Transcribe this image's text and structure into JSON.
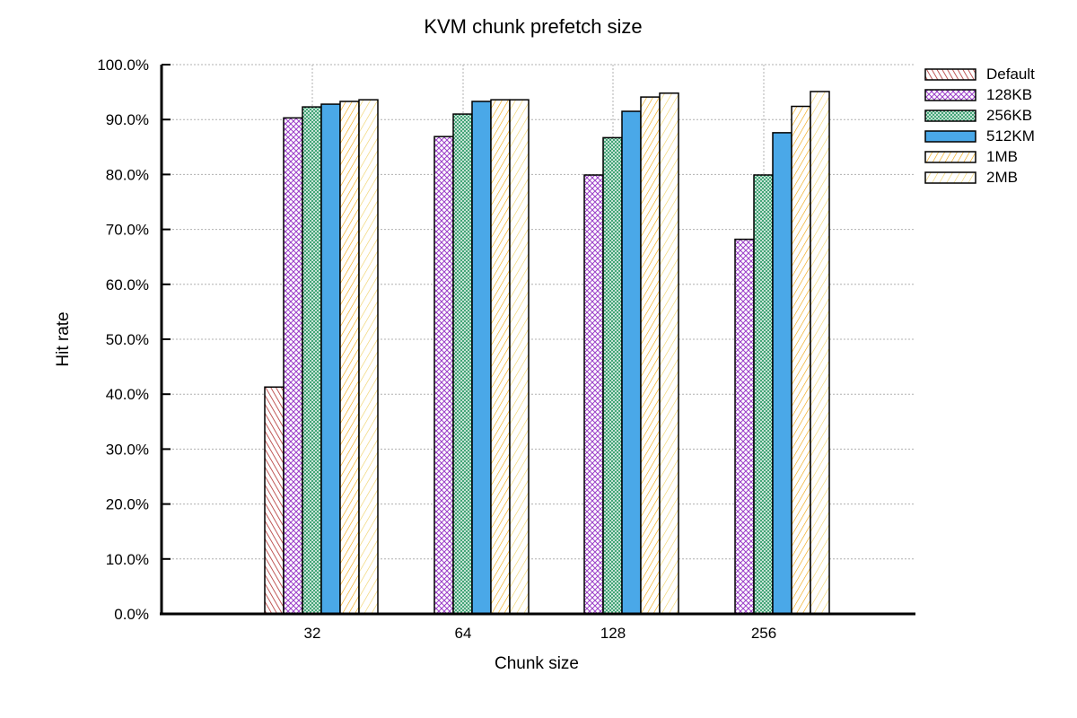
{
  "chart_data": {
    "type": "bar",
    "title": "KVM chunk prefetch size",
    "xlabel": "Chunk size",
    "ylabel": "Hit rate",
    "categories": [
      "32",
      "64",
      "128",
      "256"
    ],
    "ylim": [
      0,
      100
    ],
    "y_ticks": [
      "0.0%",
      "10.0%",
      "20.0%",
      "30.0%",
      "40.0%",
      "50.0%",
      "60.0%",
      "70.0%",
      "80.0%",
      "90.0%",
      "100.0%"
    ],
    "grid": true,
    "legend_position": "top-right",
    "series": [
      {
        "name": "Default",
        "values": [
          41.3,
          0,
          0,
          0
        ],
        "color": "#b03030",
        "pattern": "diag-right"
      },
      {
        "name": "128KB",
        "values": [
          90.3,
          86.9,
          79.9,
          68.2
        ],
        "color": "#9b3fc8",
        "pattern": "crosshatch"
      },
      {
        "name": "256KB",
        "values": [
          92.3,
          91.0,
          86.7,
          79.9
        ],
        "color": "#3aa070",
        "pattern": "dots"
      },
      {
        "name": "512KM",
        "values": [
          92.8,
          93.3,
          91.5,
          87.6
        ],
        "color": "#4aa8e8",
        "pattern": "solid"
      },
      {
        "name": "1MB",
        "values": [
          93.3,
          93.6,
          94.1,
          92.4
        ],
        "color": "#f0a000",
        "pattern": "diag-left"
      },
      {
        "name": "2MB",
        "values": [
          93.6,
          93.6,
          94.8,
          95.1
        ],
        "color": "#f0d060",
        "pattern": "diag-left-sparse"
      }
    ]
  }
}
